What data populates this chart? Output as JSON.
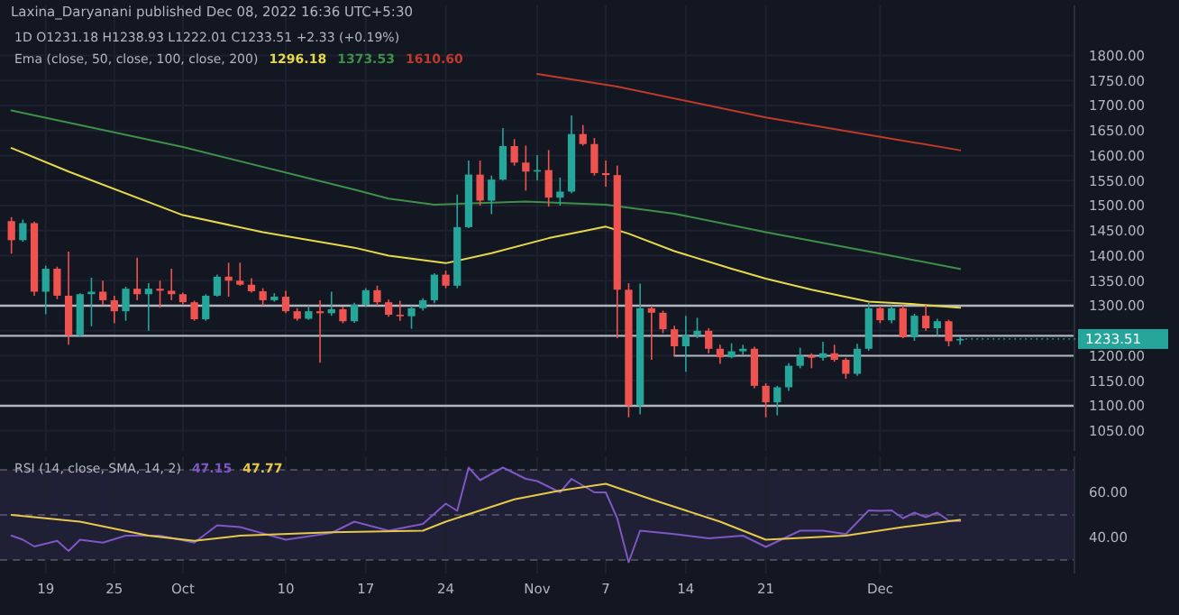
{
  "chart_data": [
    {
      "type": "candlestick",
      "title": "Laxina_Daryanani published Dec 08, 2022 16:36 UTC+5:30",
      "subtitle": "1D  O1231.18  H1238.93  L1222.01  C1233.51  +2.33 (+0.19%)",
      "annotations": [
        "Ema (close, 50, close, 100, close, 200)",
        "1296.18",
        "1373.53",
        "1610.60",
        {
          "text": "1233.51",
          "x": "2022-12-08",
          "y": 1233.51
        }
      ],
      "x": [
        "2022-09-16",
        "2022-09-17",
        "2022-09-18",
        "2022-09-19",
        "2022-09-20",
        "2022-09-21",
        "2022-09-22",
        "2022-09-23",
        "2022-09-24",
        "2022-09-25",
        "2022-09-26",
        "2022-09-27",
        "2022-09-28",
        "2022-09-29",
        "2022-09-30",
        "2022-10-01",
        "2022-10-02",
        "2022-10-03",
        "2022-10-04",
        "2022-10-05",
        "2022-10-06",
        "2022-10-07",
        "2022-10-08",
        "2022-10-09",
        "2022-10-10",
        "2022-10-11",
        "2022-10-12",
        "2022-10-13",
        "2022-10-14",
        "2022-10-15",
        "2022-10-16",
        "2022-10-17",
        "2022-10-18",
        "2022-10-19",
        "2022-10-20",
        "2022-10-21",
        "2022-10-22",
        "2022-10-23",
        "2022-10-24",
        "2022-10-25",
        "2022-10-26",
        "2022-10-27",
        "2022-10-28",
        "2022-10-29",
        "2022-10-30",
        "2022-10-31",
        "2022-11-01",
        "2022-11-02",
        "2022-11-03",
        "2022-11-04",
        "2022-11-05",
        "2022-11-06",
        "2022-11-07",
        "2022-11-08",
        "2022-11-09",
        "2022-11-10",
        "2022-11-11",
        "2022-11-12",
        "2022-11-13",
        "2022-11-14",
        "2022-11-15",
        "2022-11-16",
        "2022-11-17",
        "2022-11-18",
        "2022-11-19",
        "2022-11-20",
        "2022-11-21",
        "2022-11-22",
        "2022-11-23",
        "2022-11-24",
        "2022-11-25",
        "2022-11-26",
        "2022-11-27",
        "2022-11-28",
        "2022-11-29",
        "2022-11-30",
        "2022-12-01",
        "2022-12-02",
        "2022-12-03",
        "2022-12-04",
        "2022-12-05",
        "2022-12-06",
        "2022-12-07",
        "2022-12-08"
      ],
      "ohlc": [
        [
          1469,
          1477,
          1404,
          1431
        ],
        [
          1431,
          1472,
          1428,
          1465
        ],
        [
          1465,
          1468,
          1320,
          1328
        ],
        [
          1328,
          1380,
          1283,
          1374
        ],
        [
          1374,
          1378,
          1313,
          1320
        ],
        [
          1320,
          1408,
          1222,
          1241
        ],
        [
          1241,
          1325,
          1238,
          1323
        ],
        [
          1323,
          1356,
          1259,
          1328
        ],
        [
          1328,
          1350,
          1301,
          1311
        ],
        [
          1311,
          1320,
          1265,
          1289
        ],
        [
          1289,
          1338,
          1270,
          1334
        ],
        [
          1334,
          1396,
          1311,
          1323
        ],
        [
          1323,
          1345,
          1250,
          1334
        ],
        [
          1334,
          1350,
          1296,
          1330
        ],
        [
          1330,
          1374,
          1311,
          1323
        ],
        [
          1323,
          1326,
          1303,
          1307
        ],
        [
          1307,
          1310,
          1270,
          1273
        ],
        [
          1273,
          1323,
          1270,
          1320
        ],
        [
          1320,
          1362,
          1318,
          1358
        ],
        [
          1358,
          1386,
          1318,
          1350
        ],
        [
          1350,
          1386,
          1340,
          1342
        ],
        [
          1342,
          1355,
          1326,
          1329
        ],
        [
          1329,
          1335,
          1300,
          1311
        ],
        [
          1311,
          1325,
          1308,
          1318
        ],
        [
          1318,
          1330,
          1285,
          1289
        ],
        [
          1289,
          1295,
          1270,
          1274
        ],
        [
          1274,
          1300,
          1272,
          1289
        ],
        [
          1289,
          1311,
          1186,
          1285
        ],
        [
          1285,
          1328,
          1280,
          1293
        ],
        [
          1293,
          1298,
          1265,
          1269
        ],
        [
          1269,
          1306,
          1266,
          1302
        ],
        [
          1302,
          1335,
          1298,
          1331
        ],
        [
          1331,
          1340,
          1300,
          1307
        ],
        [
          1307,
          1312,
          1278,
          1282
        ],
        [
          1282,
          1310,
          1270,
          1279
        ],
        [
          1279,
          1300,
          1254,
          1295
        ],
        [
          1295,
          1315,
          1290,
          1311
        ],
        [
          1311,
          1365,
          1305,
          1362
        ],
        [
          1362,
          1370,
          1335,
          1340
        ],
        [
          1340,
          1522,
          1335,
          1457
        ],
        [
          1457,
          1590,
          1455,
          1562
        ],
        [
          1562,
          1590,
          1500,
          1510
        ],
        [
          1510,
          1560,
          1483,
          1552
        ],
        [
          1552,
          1655,
          1550,
          1619
        ],
        [
          1619,
          1633,
          1580,
          1586
        ],
        [
          1586,
          1620,
          1530,
          1568
        ],
        [
          1568,
          1601,
          1550,
          1571
        ],
        [
          1571,
          1611,
          1498,
          1516
        ],
        [
          1516,
          1556,
          1500,
          1528
        ],
        [
          1528,
          1680,
          1525,
          1643
        ],
        [
          1643,
          1661,
          1620,
          1623
        ],
        [
          1623,
          1635,
          1560,
          1565
        ],
        [
          1565,
          1590,
          1538,
          1561
        ],
        [
          1561,
          1580,
          1235,
          1332
        ],
        [
          1332,
          1345,
          1077,
          1101
        ],
        [
          1101,
          1344,
          1083,
          1295
        ],
        [
          1295,
          1300,
          1192,
          1286
        ],
        [
          1286,
          1290,
          1245,
          1253
        ],
        [
          1253,
          1260,
          1200,
          1219
        ],
        [
          1219,
          1280,
          1168,
          1241
        ],
        [
          1241,
          1276,
          1235,
          1250
        ],
        [
          1250,
          1255,
          1205,
          1214
        ],
        [
          1214,
          1222,
          1184,
          1197
        ],
        [
          1197,
          1225,
          1195,
          1209
        ],
        [
          1209,
          1222,
          1202,
          1214
        ],
        [
          1214,
          1218,
          1135,
          1140
        ],
        [
          1140,
          1145,
          1077,
          1107
        ],
        [
          1107,
          1140,
          1081,
          1137
        ],
        [
          1137,
          1185,
          1130,
          1180
        ],
        [
          1180,
          1216,
          1175,
          1200
        ],
        [
          1200,
          1205,
          1175,
          1196
        ],
        [
          1196,
          1228,
          1190,
          1205
        ],
        [
          1205,
          1222,
          1188,
          1192
        ],
        [
          1192,
          1196,
          1154,
          1164
        ],
        [
          1164,
          1224,
          1160,
          1214
        ],
        [
          1214,
          1306,
          1210,
          1295
        ],
        [
          1295,
          1300,
          1265,
          1271
        ],
        [
          1271,
          1300,
          1265,
          1295
        ],
        [
          1295,
          1301,
          1235,
          1237
        ],
        [
          1237,
          1284,
          1230,
          1280
        ],
        [
          1280,
          1301,
          1250,
          1255
        ],
        [
          1255,
          1274,
          1240,
          1269
        ],
        [
          1269,
          1272,
          1219,
          1229
        ],
        [
          1231.18,
          1238.93,
          1222.01,
          1233.51
        ]
      ],
      "series": [
        {
          "type": "line",
          "color": "#e6d84a",
          "x": [
            "2022-09-16",
            "2022-09-21",
            "2022-10-01",
            "2022-10-08",
            "2022-10-16",
            "2022-10-19",
            "2022-10-24",
            "2022-10-28",
            "2022-11-02",
            "2022-11-07",
            "2022-11-09",
            "2022-11-13",
            "2022-11-18",
            "2022-11-21",
            "2022-11-25",
            "2022-11-30",
            "2022-12-04",
            "2022-12-08"
          ],
          "values": [
            1615,
            1568,
            1481,
            1447,
            1416,
            1400,
            1385,
            1405,
            1435,
            1458,
            1444,
            1409,
            1374,
            1354,
            1332,
            1308,
            1303,
            1296.18
          ]
        },
        {
          "type": "line",
          "color": "#3e8f4a",
          "x": [
            "2022-09-16",
            "2022-10-01",
            "2022-10-16",
            "2022-10-19",
            "2022-10-23",
            "2022-10-31",
            "2022-11-07",
            "2022-11-13",
            "2022-11-21",
            "2022-12-01",
            "2022-12-08"
          ],
          "values": [
            1690,
            1617,
            1532,
            1514,
            1502,
            1508,
            1502,
            1484,
            1447,
            1404,
            1373.53
          ]
        },
        {
          "type": "line",
          "color": "#c0392b",
          "x": [
            "2022-11-01",
            "2022-11-08",
            "2022-11-21",
            "2022-12-08"
          ],
          "values": [
            1763,
            1738,
            1676,
            1610.6
          ]
        },
        {
          "type": "line",
          "color": "#b2b5be",
          "x": [
            "2022-11-13",
            "2022-12-18"
          ],
          "values": [
            1200,
            1200
          ]
        }
      ],
      "ref_lines": [
        {
          "axis": "y",
          "value": 1300,
          "color": "#b2b5be"
        },
        {
          "axis": "y",
          "value": 1240,
          "color": "#b2b5be"
        },
        {
          "axis": "y",
          "value": 1100,
          "color": "#b2b5be"
        }
      ],
      "xlim": [
        "2022-09-15",
        "2022-12-18"
      ],
      "ylim": [
        1010,
        1900
      ],
      "yticks": [
        {
          "value": 1050,
          "label": "1050.00"
        },
        {
          "value": 1100,
          "label": "1100.00"
        },
        {
          "value": 1150,
          "label": "1150.00"
        },
        {
          "value": 1200,
          "label": "1200.00"
        },
        {
          "value": 1250,
          "label": null
        },
        {
          "value": 1300,
          "label": "1300.00"
        },
        {
          "value": 1350,
          "label": "1350.00"
        },
        {
          "value": 1400,
          "label": "1400.00"
        },
        {
          "value": 1450,
          "label": "1450.00"
        },
        {
          "value": 1500,
          "label": "1500.00"
        },
        {
          "value": 1550,
          "label": "1550.00"
        },
        {
          "value": 1600,
          "label": "1600.00"
        },
        {
          "value": 1650,
          "label": "1650.00"
        },
        {
          "value": 1700,
          "label": "1700.00"
        },
        {
          "value": 1750,
          "label": "1750.00"
        },
        {
          "value": 1800,
          "label": "1800.00"
        }
      ],
      "grid": true,
      "tick_labels": "y"
    },
    {
      "type": "line",
      "title": "RSI (14, close, SMA, 14, 2)",
      "annotations": [
        "47.15",
        "47.77"
      ],
      "series": [
        {
          "color": "#7e57c2",
          "x": [
            "2022-09-16",
            "2022-09-17",
            "2022-09-18",
            "2022-09-20",
            "2022-09-21",
            "2022-09-22",
            "2022-09-24",
            "2022-09-26",
            "2022-09-29",
            "2022-10-02",
            "2022-10-04",
            "2022-10-06",
            "2022-10-10",
            "2022-10-14",
            "2022-10-16",
            "2022-10-19",
            "2022-10-22",
            "2022-10-24",
            "2022-10-25",
            "2022-10-26",
            "2022-10-27",
            "2022-10-29",
            "2022-10-31",
            "2022-11-01",
            "2022-11-03",
            "2022-11-04",
            "2022-11-06",
            "2022-11-07",
            "2022-11-08",
            "2022-11-09",
            "2022-11-10",
            "2022-11-13",
            "2022-11-16",
            "2022-11-19",
            "2022-11-21",
            "2022-11-24",
            "2022-11-26",
            "2022-11-28",
            "2022-11-30",
            "2022-12-01",
            "2022-12-02",
            "2022-12-03",
            "2022-12-04",
            "2022-12-05",
            "2022-12-06",
            "2022-12-07",
            "2022-12-08"
          ],
          "values": [
            40.8,
            39,
            36,
            38.5,
            34,
            39,
            37.7,
            40.8,
            40.8,
            37.7,
            45.4,
            44.6,
            39,
            42,
            47,
            43,
            46,
            55,
            51.8,
            71,
            65.4,
            71,
            66,
            65,
            60,
            66,
            60,
            60,
            48.5,
            29,
            43,
            41.5,
            39.6,
            40.8,
            35.8,
            43,
            43,
            41.5,
            52,
            51.8,
            52,
            48.5,
            51,
            49,
            51,
            47.5,
            47.15
          ]
        },
        {
          "color": "#e6c84a",
          "x": [
            "2022-09-16",
            "2022-09-22",
            "2022-09-28",
            "2022-10-02",
            "2022-10-06",
            "2022-10-14",
            "2022-10-22",
            "2022-10-24",
            "2022-10-30",
            "2022-11-03",
            "2022-11-07",
            "2022-11-11",
            "2022-11-17",
            "2022-11-21",
            "2022-11-28",
            "2022-12-03",
            "2022-12-08"
          ],
          "values": [
            50,
            47,
            40.8,
            38.5,
            40.8,
            42.3,
            43,
            47,
            56.9,
            60.8,
            63.8,
            56.9,
            47,
            39,
            40.8,
            44.6,
            47.77
          ]
        }
      ],
      "bands": [
        {
          "axis": "y",
          "from": 30,
          "to": 70,
          "color": "#7e57c2"
        }
      ],
      "ref_lines": [
        {
          "axis": "y",
          "value": 70,
          "color": "#787b86",
          "line_style": "dashed"
        },
        {
          "axis": "y",
          "value": 50,
          "color": "#787b86",
          "line_style": "dashed"
        },
        {
          "axis": "y",
          "value": 30,
          "color": "#787b86",
          "line_style": "dashed"
        }
      ],
      "xlim": [
        "2022-09-15",
        "2022-12-18"
      ],
      "ylim": [
        24,
        76
      ],
      "xticks": [
        {
          "value": "2022-09-19",
          "label": "19"
        },
        {
          "value": "2022-09-25",
          "label": "25"
        },
        {
          "value": "2022-10-01",
          "label": "Oct"
        },
        {
          "value": "2022-10-10",
          "label": "10"
        },
        {
          "value": "2022-10-17",
          "label": "17"
        },
        {
          "value": "2022-10-24",
          "label": "24"
        },
        {
          "value": "2022-11-01",
          "label": "Nov"
        },
        {
          "value": "2022-11-07",
          "label": "7"
        },
        {
          "value": "2022-11-14",
          "label": "14"
        },
        {
          "value": "2022-11-21",
          "label": "21"
        },
        {
          "value": "2022-12-01",
          "label": "Dec"
        }
      ],
      "yticks": [
        {
          "value": 60,
          "label": "60.00"
        },
        {
          "value": 40,
          "label": "40.00"
        }
      ],
      "grid": true,
      "line_style": "solid"
    }
  ]
}
